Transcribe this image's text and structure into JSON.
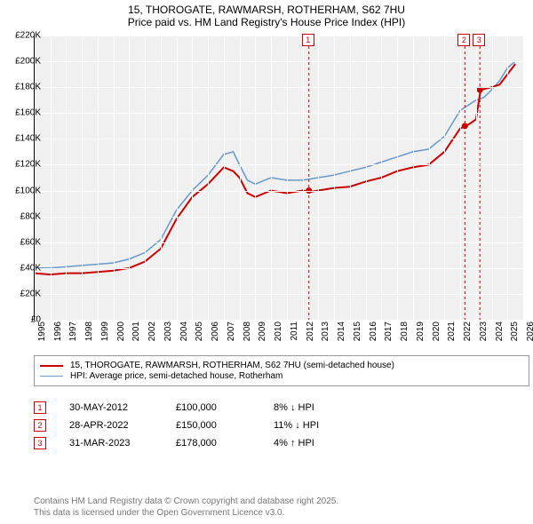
{
  "title": {
    "line1": "15, THOROGATE, RAWMARSH, ROTHERHAM, S62 7HU",
    "line2": "Price paid vs. HM Land Registry's House Price Index (HPI)"
  },
  "chart": {
    "type": "line",
    "background_color": "#f0f0f0",
    "grid_color": "#ffffff",
    "border_color": "#000000",
    "ylim": [
      0,
      220000
    ],
    "ytick_step": 20000,
    "ytick_labels": [
      "£0",
      "£20K",
      "£40K",
      "£60K",
      "£80K",
      "£100K",
      "£120K",
      "£140K",
      "£160K",
      "£180K",
      "£200K",
      "£220K"
    ],
    "xlim": [
      1995,
      2026
    ],
    "xtick_step": 1,
    "xtick_labels": [
      "1995",
      "1996",
      "1997",
      "1998",
      "1999",
      "2000",
      "2001",
      "2002",
      "2003",
      "2004",
      "2005",
      "2006",
      "2007",
      "2008",
      "2009",
      "2010",
      "2011",
      "2012",
      "2013",
      "2014",
      "2015",
      "2016",
      "2017",
      "2018",
      "2019",
      "2020",
      "2021",
      "2022",
      "2023",
      "2024",
      "2025",
      "2026"
    ],
    "label_fontsize": 10,
    "title_fontsize": 12,
    "series": [
      {
        "name": "15, THOROGATE, RAWMARSH, ROTHERHAM, S62 7HU (semi-detached house)",
        "color": "#cc0000",
        "line_width": 2,
        "data": [
          [
            1995,
            36000
          ],
          [
            1996,
            35000
          ],
          [
            1997,
            36000
          ],
          [
            1998,
            36000
          ],
          [
            1999,
            37000
          ],
          [
            2000,
            38000
          ],
          [
            2001,
            40000
          ],
          [
            2002,
            45000
          ],
          [
            2003,
            55000
          ],
          [
            2004,
            78000
          ],
          [
            2005,
            95000
          ],
          [
            2006,
            105000
          ],
          [
            2007,
            118000
          ],
          [
            2007.6,
            115000
          ],
          [
            2008,
            110000
          ],
          [
            2008.5,
            98000
          ],
          [
            2009,
            95000
          ],
          [
            2010,
            100000
          ],
          [
            2011,
            98000
          ],
          [
            2012,
            100000
          ],
          [
            2012.5,
            99000
          ],
          [
            2013,
            100000
          ],
          [
            2014,
            102000
          ],
          [
            2015,
            103000
          ],
          [
            2016,
            107000
          ],
          [
            2017,
            110000
          ],
          [
            2018,
            115000
          ],
          [
            2019,
            118000
          ],
          [
            2020,
            120000
          ],
          [
            2021,
            130000
          ],
          [
            2022,
            148000
          ],
          [
            2022.4,
            150000
          ],
          [
            2023,
            155000
          ],
          [
            2023.3,
            178000
          ],
          [
            2024,
            180000
          ],
          [
            2024.5,
            182000
          ],
          [
            2025,
            190000
          ],
          [
            2025.5,
            198000
          ]
        ]
      },
      {
        "name": "HPI: Average price, semi-detached house, Rotherham",
        "color": "#6699cc",
        "line_width": 1.5,
        "data": [
          [
            1995,
            40000
          ],
          [
            1996,
            40000
          ],
          [
            1997,
            41000
          ],
          [
            1998,
            42000
          ],
          [
            1999,
            43000
          ],
          [
            2000,
            44000
          ],
          [
            2001,
            47000
          ],
          [
            2002,
            52000
          ],
          [
            2003,
            62000
          ],
          [
            2004,
            85000
          ],
          [
            2005,
            100000
          ],
          [
            2006,
            112000
          ],
          [
            2007,
            128000
          ],
          [
            2007.6,
            130000
          ],
          [
            2008,
            120000
          ],
          [
            2008.5,
            108000
          ],
          [
            2009,
            105000
          ],
          [
            2010,
            110000
          ],
          [
            2011,
            108000
          ],
          [
            2012,
            108000
          ],
          [
            2013,
            110000
          ],
          [
            2014,
            112000
          ],
          [
            2015,
            115000
          ],
          [
            2016,
            118000
          ],
          [
            2017,
            122000
          ],
          [
            2018,
            126000
          ],
          [
            2019,
            130000
          ],
          [
            2020,
            132000
          ],
          [
            2021,
            142000
          ],
          [
            2022,
            162000
          ],
          [
            2023,
            170000
          ],
          [
            2023.5,
            172000
          ],
          [
            2024,
            178000
          ],
          [
            2024.5,
            185000
          ],
          [
            2025,
            195000
          ],
          [
            2025.5,
            200000
          ]
        ]
      }
    ],
    "markers": [
      {
        "id": "1",
        "x": 2012.4,
        "y": 100000
      },
      {
        "id": "2",
        "x": 2022.3,
        "y": 150000
      },
      {
        "id": "3",
        "x": 2023.25,
        "y": 178000
      }
    ]
  },
  "legend": {
    "items": [
      {
        "color": "#cc0000",
        "width": 2,
        "label": "15, THOROGATE, RAWMARSH, ROTHERHAM, S62 7HU (semi-detached house)"
      },
      {
        "color": "#6699cc",
        "width": 1.5,
        "label": "HPI: Average price, semi-detached house, Rotherham"
      }
    ]
  },
  "transactions": [
    {
      "id": "1",
      "date": "30-MAY-2012",
      "price": "£100,000",
      "diff": "8% ↓ HPI"
    },
    {
      "id": "2",
      "date": "28-APR-2022",
      "price": "£150,000",
      "diff": "11% ↓ HPI"
    },
    {
      "id": "3",
      "date": "31-MAR-2023",
      "price": "£178,000",
      "diff": "4% ↑ HPI"
    }
  ],
  "footer": {
    "line1": "Contains HM Land Registry data © Crown copyright and database right 2025.",
    "line2": "This data is licensed under the Open Government Licence v3.0."
  }
}
